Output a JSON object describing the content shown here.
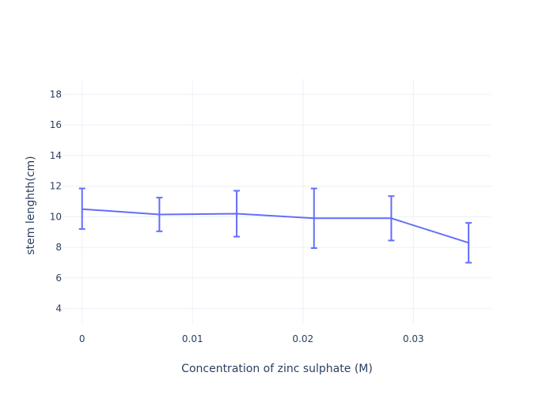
{
  "chart_data": {
    "type": "line",
    "title": "",
    "xlabel": "Concentration of zinc sulphate (M)",
    "ylabel": "stem lenghth(cm)",
    "x": [
      0,
      0.007,
      0.014,
      0.021,
      0.028,
      0.035
    ],
    "series": [
      {
        "values": [
          10.5,
          10.15,
          10.2,
          9.9,
          9.9,
          8.3
        ],
        "error_plus": [
          1.35,
          1.1,
          1.5,
          1.95,
          1.45,
          1.3
        ],
        "error_minus": [
          1.3,
          1.1,
          1.5,
          1.95,
          1.45,
          1.3
        ],
        "color": "#636efa"
      }
    ],
    "xlim": [
      -0.0017,
      0.037
    ],
    "ylim": [
      3,
      19
    ],
    "xticks": [
      0,
      0.01,
      0.02,
      0.03
    ],
    "xtick_labels": [
      "0",
      "0.01",
      "0.02",
      "0.03"
    ],
    "yticks": [
      4,
      6,
      8,
      10,
      12,
      14,
      16,
      18
    ],
    "ytick_labels": [
      "4",
      "6",
      "8",
      "10",
      "12",
      "14",
      "16",
      "18"
    ],
    "grid": true,
    "legend": "none",
    "grid_color": "#ebf0f8"
  }
}
